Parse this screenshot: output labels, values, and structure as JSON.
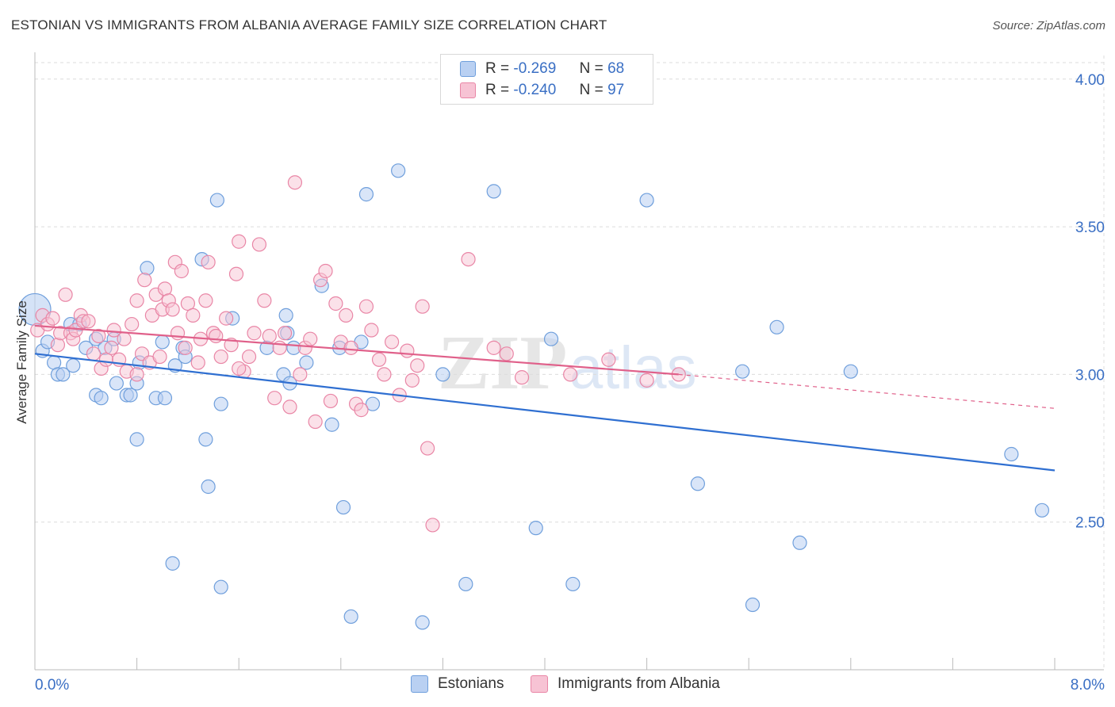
{
  "header": {
    "title": "ESTONIAN VS IMMIGRANTS FROM ALBANIA AVERAGE FAMILY SIZE CORRELATION CHART",
    "source": "Source: ZipAtlas.com"
  },
  "watermark": {
    "zip": "ZIP",
    "atlas": "atlas"
  },
  "stats_legend": {
    "r_label": "R =",
    "n_label": "N =",
    "rows": [
      {
        "r": "-0.269",
        "n": "68"
      },
      {
        "r": "-0.240",
        "n": "97"
      }
    ]
  },
  "colors": {
    "blue_fill": "#b9d0f2",
    "blue_stroke": "#6f9fdc",
    "blue_line": "#2f6fd1",
    "pink_fill": "#f7c3d4",
    "pink_stroke": "#e986a6",
    "pink_line": "#e0608a",
    "axis_text": "#3a6fc4",
    "grid": "#dcdcdc"
  },
  "chart_data": {
    "type": "scatter",
    "title": "ESTONIAN VS IMMIGRANTS FROM ALBANIA AVERAGE FAMILY SIZE CORRELATION CHART",
    "xlabel": "",
    "ylabel": "Average Family Size",
    "xlim": [
      0.0,
      8.0
    ],
    "ylim": [
      2.0,
      4.08
    ],
    "x_tick_labels": [
      "0.0%",
      "8.0%"
    ],
    "y_ticks": [
      2.5,
      3.0,
      3.5,
      4.0
    ],
    "y_tick_labels": [
      "2.50",
      "3.00",
      "3.50",
      "4.00"
    ],
    "grid": true,
    "legend_position": "bottom",
    "series": [
      {
        "name": "Estonians",
        "color": "#6f9fdc",
        "points": [
          [
            0.0,
            3.22
          ],
          [
            0.06,
            3.08
          ],
          [
            0.1,
            3.11
          ],
          [
            0.15,
            3.04
          ],
          [
            0.18,
            3.0
          ],
          [
            0.22,
            3.0
          ],
          [
            0.3,
            3.03
          ],
          [
            0.28,
            3.17
          ],
          [
            0.35,
            3.17
          ],
          [
            0.4,
            3.09
          ],
          [
            0.48,
            3.12
          ],
          [
            0.55,
            3.09
          ],
          [
            0.62,
            3.12
          ],
          [
            0.48,
            2.93
          ],
          [
            0.52,
            2.92
          ],
          [
            0.64,
            2.97
          ],
          [
            0.72,
            2.93
          ],
          [
            0.75,
            2.93
          ],
          [
            0.8,
            2.97
          ],
          [
            0.82,
            3.04
          ],
          [
            0.88,
            3.36
          ],
          [
            0.95,
            2.92
          ],
          [
            1.02,
            2.92
          ],
          [
            1.0,
            3.11
          ],
          [
            1.1,
            3.03
          ],
          [
            1.16,
            3.09
          ],
          [
            1.18,
            3.06
          ],
          [
            1.31,
            3.39
          ],
          [
            1.34,
            2.78
          ],
          [
            1.46,
            2.9
          ],
          [
            1.55,
            3.19
          ],
          [
            0.8,
            2.78
          ],
          [
            1.36,
            2.62
          ],
          [
            1.43,
            3.59
          ],
          [
            1.82,
            3.09
          ],
          [
            1.95,
            3.0
          ],
          [
            2.0,
            2.97
          ],
          [
            1.97,
            3.2
          ],
          [
            1.98,
            3.14
          ],
          [
            2.03,
            3.09
          ],
          [
            2.13,
            3.04
          ],
          [
            2.25,
            3.3
          ],
          [
            2.33,
            2.83
          ],
          [
            2.39,
            3.09
          ],
          [
            2.56,
            3.11
          ],
          [
            2.65,
            2.9
          ],
          [
            2.6,
            3.61
          ],
          [
            2.85,
            3.69
          ],
          [
            3.2,
            3.0
          ],
          [
            3.6,
            3.62
          ],
          [
            1.08,
            2.36
          ],
          [
            1.46,
            2.28
          ],
          [
            2.42,
            2.55
          ],
          [
            2.48,
            2.18
          ],
          [
            3.04,
            2.16
          ],
          [
            3.38,
            2.29
          ],
          [
            3.93,
            2.48
          ],
          [
            4.22,
            2.29
          ],
          [
            4.05,
            3.12
          ],
          [
            4.8,
            3.59
          ],
          [
            5.2,
            2.63
          ],
          [
            5.55,
            3.01
          ],
          [
            5.63,
            2.22
          ],
          [
            5.82,
            3.16
          ],
          [
            6.0,
            2.43
          ],
          [
            6.4,
            3.01
          ],
          [
            7.66,
            2.73
          ],
          [
            7.9,
            2.54
          ]
        ]
      },
      {
        "name": "Immigrants from Albania",
        "color": "#e986a6",
        "points": [
          [
            0.02,
            3.15
          ],
          [
            0.06,
            3.2
          ],
          [
            0.1,
            3.17
          ],
          [
            0.14,
            3.19
          ],
          [
            0.18,
            3.1
          ],
          [
            0.2,
            3.14
          ],
          [
            0.24,
            3.27
          ],
          [
            0.28,
            3.14
          ],
          [
            0.3,
            3.12
          ],
          [
            0.32,
            3.15
          ],
          [
            0.36,
            3.2
          ],
          [
            0.38,
            3.18
          ],
          [
            0.42,
            3.18
          ],
          [
            0.46,
            3.07
          ],
          [
            0.5,
            3.13
          ],
          [
            0.52,
            3.02
          ],
          [
            0.56,
            3.05
          ],
          [
            0.6,
            3.09
          ],
          [
            0.62,
            3.15
          ],
          [
            0.66,
            3.05
          ],
          [
            0.7,
            3.12
          ],
          [
            0.72,
            3.01
          ],
          [
            0.76,
            3.17
          ],
          [
            0.8,
            3.25
          ],
          [
            0.84,
            3.07
          ],
          [
            0.86,
            3.32
          ],
          [
            0.9,
            3.04
          ],
          [
            0.92,
            3.2
          ],
          [
            0.95,
            3.27
          ],
          [
            0.98,
            3.06
          ],
          [
            1.0,
            3.22
          ],
          [
            1.02,
            3.29
          ],
          [
            1.05,
            3.25
          ],
          [
            1.08,
            3.22
          ],
          [
            1.1,
            3.38
          ],
          [
            1.12,
            3.14
          ],
          [
            1.15,
            3.35
          ],
          [
            1.18,
            3.09
          ],
          [
            1.2,
            3.24
          ],
          [
            1.24,
            3.2
          ],
          [
            1.28,
            3.04
          ],
          [
            1.3,
            3.12
          ],
          [
            1.34,
            3.25
          ],
          [
            1.36,
            3.38
          ],
          [
            1.4,
            3.14
          ],
          [
            1.42,
            3.13
          ],
          [
            1.46,
            3.06
          ],
          [
            1.5,
            3.19
          ],
          [
            1.54,
            3.1
          ],
          [
            1.58,
            3.34
          ],
          [
            1.6,
            3.45
          ],
          [
            1.64,
            3.01
          ],
          [
            1.68,
            3.06
          ],
          [
            1.72,
            3.14
          ],
          [
            1.76,
            3.44
          ],
          [
            1.8,
            3.25
          ],
          [
            1.84,
            3.13
          ],
          [
            1.88,
            2.92
          ],
          [
            1.92,
            3.09
          ],
          [
            1.96,
            3.14
          ],
          [
            2.0,
            2.89
          ],
          [
            2.04,
            3.65
          ],
          [
            2.08,
            3.0
          ],
          [
            2.12,
            3.09
          ],
          [
            2.16,
            3.12
          ],
          [
            2.2,
            2.84
          ],
          [
            2.24,
            3.32
          ],
          [
            2.28,
            3.35
          ],
          [
            2.32,
            2.91
          ],
          [
            2.36,
            3.24
          ],
          [
            2.4,
            3.11
          ],
          [
            2.44,
            3.2
          ],
          [
            2.48,
            3.09
          ],
          [
            2.52,
            2.9
          ],
          [
            2.56,
            2.88
          ],
          [
            2.6,
            3.23
          ],
          [
            2.64,
            3.15
          ],
          [
            2.7,
            3.05
          ],
          [
            2.74,
            3.0
          ],
          [
            2.8,
            3.11
          ],
          [
            2.86,
            2.93
          ],
          [
            2.92,
            3.08
          ],
          [
            2.96,
            2.98
          ],
          [
            3.0,
            3.03
          ],
          [
            3.04,
            3.23
          ],
          [
            3.08,
            2.75
          ],
          [
            3.12,
            2.49
          ],
          [
            3.4,
            3.39
          ],
          [
            3.6,
            3.09
          ],
          [
            3.7,
            3.07
          ],
          [
            3.82,
            2.99
          ],
          [
            4.2,
            3.0
          ],
          [
            4.5,
            3.05
          ],
          [
            4.8,
            2.98
          ],
          [
            5.05,
            3.0
          ],
          [
            1.6,
            3.02
          ],
          [
            0.8,
            3.0
          ]
        ]
      }
    ],
    "trend_lines": [
      {
        "series": "Estonians",
        "x": [
          0.0,
          8.0
        ],
        "y": [
          3.07,
          2.675
        ],
        "style": "solid"
      },
      {
        "series": "Immigrants from Albania",
        "x_solid": [
          0.0,
          5.05
        ],
        "y_solid": [
          3.165,
          3.0
        ],
        "x_dashed": [
          5.05,
          8.0
        ],
        "y_dashed": [
          3.0,
          2.885
        ]
      }
    ]
  }
}
